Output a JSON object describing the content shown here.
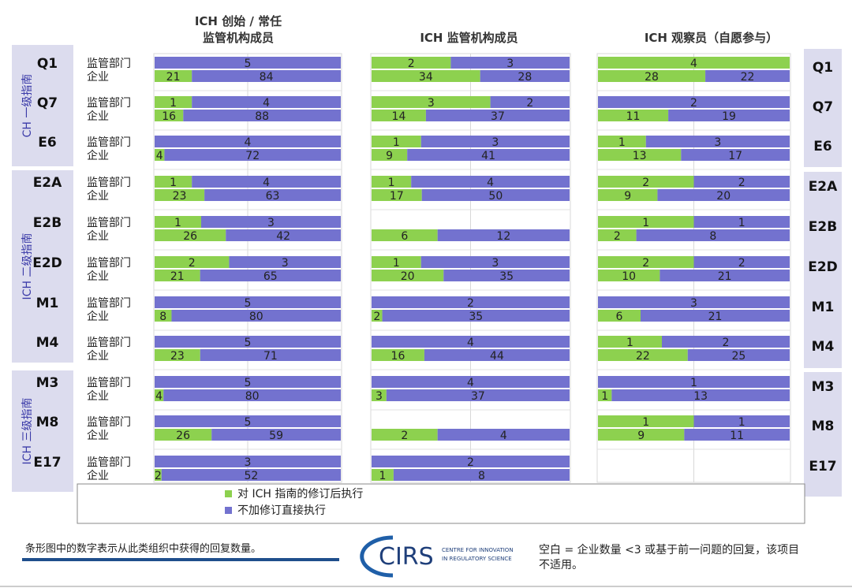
{
  "chart_data": {
    "type": "bar",
    "stacked": true,
    "orientation": "horizontal",
    "colors": {
      "green": "#8DD14F",
      "purple": "#7372CF",
      "panel_bg": "#DCDCEE"
    },
    "panels": [
      {
        "title_lines": [
          "ICH 创始 / 常任",
          "监管机构成员"
        ]
      },
      {
        "title_lines": [
          "ICH 监管机构成员"
        ]
      },
      {
        "title_lines": [
          "ICH 观察员（自愿参与）"
        ]
      }
    ],
    "row_labels": [
      "监管部门",
      "企业"
    ],
    "groups": [
      {
        "label": "Q1",
        "data": [
          [
            [
              0,
              5
            ],
            [
              21,
              84
            ]
          ],
          [
            [
              2,
              3
            ],
            [
              34,
              28
            ]
          ],
          [
            [
              4,
              0
            ],
            [
              28,
              22
            ]
          ]
        ]
      },
      {
        "label": "Q7",
        "data": [
          [
            [
              1,
              4
            ],
            [
              16,
              88
            ]
          ],
          [
            [
              3,
              2
            ],
            [
              14,
              37
            ]
          ],
          [
            [
              0,
              2
            ],
            [
              11,
              19
            ]
          ]
        ]
      },
      {
        "label": "E6",
        "data": [
          [
            [
              0,
              4
            ],
            [
              4,
              72
            ]
          ],
          [
            [
              1,
              3
            ],
            [
              9,
              41
            ]
          ],
          [
            [
              1,
              3
            ],
            [
              13,
              17
            ]
          ]
        ]
      },
      {
        "label": "E2A",
        "data": [
          [
            [
              1,
              4
            ],
            [
              23,
              63
            ]
          ],
          [
            [
              1,
              4
            ],
            [
              17,
              50
            ]
          ],
          [
            [
              2,
              2
            ],
            [
              9,
              20
            ]
          ]
        ]
      },
      {
        "label": "E2B",
        "data": [
          [
            [
              1,
              3
            ],
            [
              26,
              42
            ]
          ],
          [
            null,
            [
              6,
              12
            ]
          ],
          [
            [
              1,
              1
            ],
            [
              2,
              8
            ]
          ]
        ]
      },
      {
        "label": "E2D",
        "data": [
          [
            [
              2,
              3
            ],
            [
              21,
              65
            ]
          ],
          [
            [
              1,
              3
            ],
            [
              20,
              35
            ]
          ],
          [
            [
              2,
              2
            ],
            [
              10,
              21
            ]
          ]
        ]
      },
      {
        "label": "M1",
        "data": [
          [
            [
              0,
              5
            ],
            [
              8,
              80
            ]
          ],
          [
            [
              0,
              2
            ],
            [
              2,
              35
            ]
          ],
          [
            [
              0,
              3
            ],
            [
              6,
              21
            ]
          ]
        ]
      },
      {
        "label": "M4",
        "data": [
          [
            [
              0,
              5
            ],
            [
              23,
              71
            ]
          ],
          [
            [
              0,
              4
            ],
            [
              16,
              44
            ]
          ],
          [
            [
              1,
              2
            ],
            [
              22,
              25
            ]
          ]
        ]
      },
      {
        "label": "M3",
        "data": [
          [
            [
              0,
              5
            ],
            [
              4,
              80
            ]
          ],
          [
            [
              0,
              4
            ],
            [
              3,
              37
            ]
          ],
          [
            [
              0,
              1
            ],
            [
              1,
              13
            ]
          ]
        ]
      },
      {
        "label": "M8",
        "data": [
          [
            [
              0,
              5
            ],
            [
              26,
              59
            ]
          ],
          [
            null,
            [
              2,
              4
            ]
          ],
          [
            [
              1,
              1
            ],
            [
              9,
              11
            ]
          ]
        ]
      },
      {
        "label": "E17",
        "data": [
          [
            [
              0,
              3
            ],
            [
              2,
              52
            ]
          ],
          [
            [
              0,
              2
            ],
            [
              1,
              8
            ]
          ],
          [
            null,
            null
          ]
        ]
      }
    ],
    "tiers": [
      {
        "label": "CH 一级指南"
      },
      {
        "label": "ICH 二级指南"
      },
      {
        "label": "ICH 三级指南"
      }
    ],
    "legend": [
      {
        "label": "对 ICH 指南的修订后执行",
        "color": "#8DD14F"
      },
      {
        "label": "不加修订直接执行",
        "color": "#7372CF"
      }
    ],
    "legend_position": "bottom-left"
  },
  "footer": {
    "note_left": "条形图中的数字表示从此类组织中获得的回复数量。",
    "logo_text": "CIRS",
    "logo_sub_1": "CENTRE FOR INNOVATION",
    "logo_sub_2": "IN REGULATORY SCIENCE",
    "note_right_1": "空白 = 企业数量 <3 或基于前一问题的回复，该项目",
    "note_right_2": "不适用。"
  }
}
